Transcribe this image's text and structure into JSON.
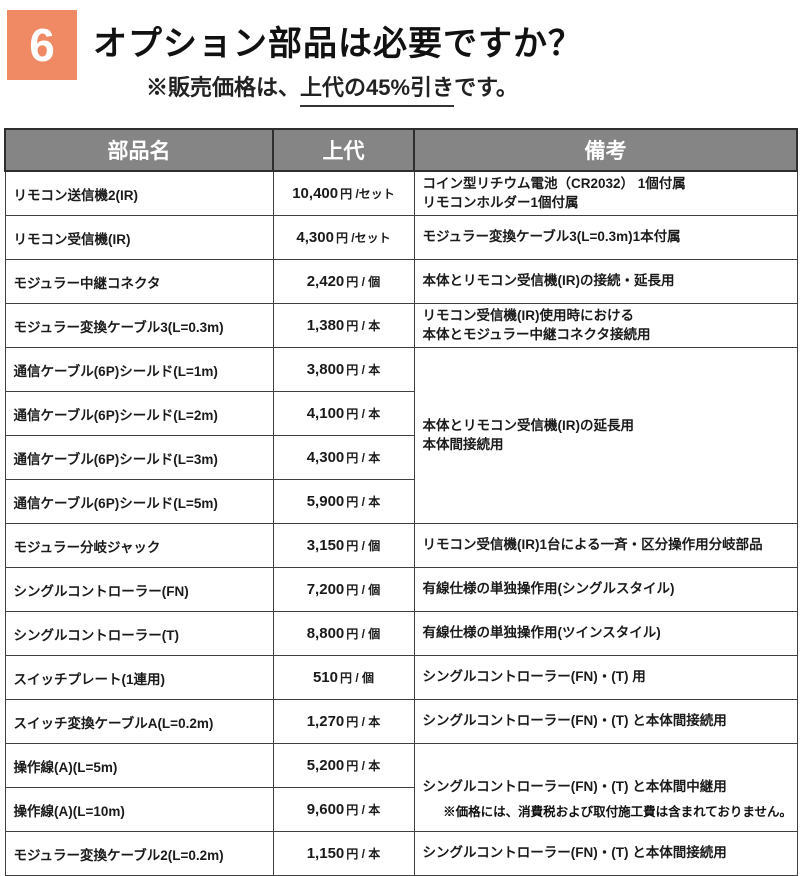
{
  "header": {
    "number": "6",
    "number_bg": "#EF8A64",
    "title": "オプション部品は必要ですか？",
    "subtitle_prefix": "※販売価格は、",
    "subtitle_underlined": "上代の45%引き",
    "subtitle_suffix": "です。"
  },
  "table": {
    "header_bg": "#858585",
    "columns": [
      "部品名",
      "上代",
      "備考"
    ],
    "rows": [
      {
        "name": "リモコン送信機2(IR)",
        "price": "10,400",
        "unit": "円 /セット",
        "note": "コイン型リチウム電池（CR2032） 1個付属\nリモコンホルダー1個付属"
      },
      {
        "name": "リモコン受信機(IR)",
        "price": "4,300",
        "unit": "円 /セット",
        "note": "モジュラー変換ケーブル3(L=0.3m)1本付属"
      },
      {
        "name": "モジュラー中継コネクタ",
        "price": "2,420",
        "unit": "円 / 個",
        "note": "本体とリモコン受信機(IR)の接続・延長用"
      },
      {
        "name": "モジュラー変換ケーブル3(L=0.3m)",
        "price": "1,380",
        "unit": "円 / 本",
        "note": "リモコン受信機(IR)使用時における\n本体とモジュラー中継コネクタ接続用"
      },
      {
        "name": "通信ケーブル(6P)シールド(L=1m)",
        "price": "3,800",
        "unit": "円 / 本",
        "note": "本体とリモコン受信機(IR)の延長用\n本体間接続用",
        "note_rowspan": 4
      },
      {
        "name": "通信ケーブル(6P)シールド(L=2m)",
        "price": "4,100",
        "unit": "円 / 本"
      },
      {
        "name": "通信ケーブル(6P)シールド(L=3m)",
        "price": "4,300",
        "unit": "円 / 本"
      },
      {
        "name": "通信ケーブル(6P)シールド(L=5m)",
        "price": "5,900",
        "unit": "円 / 本"
      },
      {
        "name": "モジュラー分岐ジャック",
        "price": "3,150",
        "unit": "円 / 個",
        "note": "リモコン受信機(IR)1台による一斉・区分操作用分岐部品"
      },
      {
        "name": "シングルコントローラー(FN)",
        "price": "7,200",
        "unit": "円 / 個",
        "note": "有線仕様の単独操作用(シングルスタイル)"
      },
      {
        "name": "シングルコントローラー(T)",
        "price": "8,800",
        "unit": "円 / 個",
        "note": "有線仕様の単独操作用(ツインスタイル)"
      },
      {
        "name": "スイッチプレート(1連用)",
        "price": "510",
        "unit": "円 / 個",
        "note": "シングルコントローラー(FN)・(T) 用"
      },
      {
        "name": "スイッチ変換ケーブルA(L=0.2m)",
        "price": "1,270",
        "unit": "円 / 本",
        "note": "シングルコントローラー(FN)・(T) と本体間接続用"
      },
      {
        "name": "操作線(A)(L=5m)",
        "price": "5,200",
        "unit": "円 / 本",
        "note": "シングルコントローラー(FN)・(T) と本体間中継用",
        "note_rowspan": 2
      },
      {
        "name": "操作線(A)(L=10m)",
        "price": "9,600",
        "unit": "円 / 本"
      },
      {
        "name": "モジュラー変換ケーブル2(L=0.2m)",
        "price": "1,150",
        "unit": "円 / 本",
        "note": "シングルコントローラー(FN)・(T) と本体間接続用"
      }
    ]
  },
  "footer": {
    "note": "※価格には、消費税および取付施工費は含まれておりません。"
  }
}
